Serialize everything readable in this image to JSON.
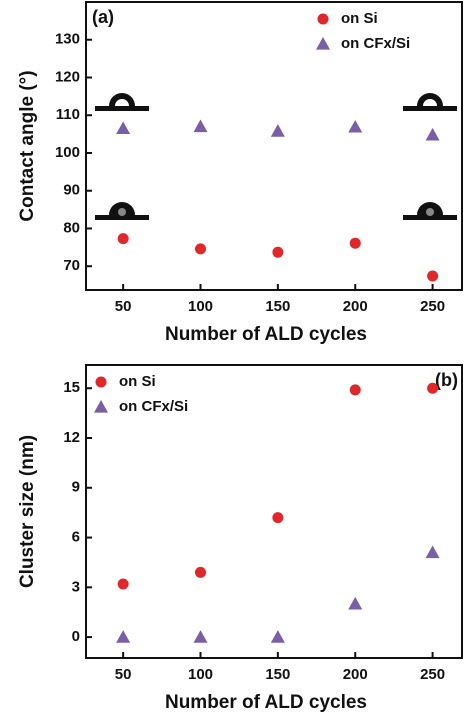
{
  "chart_data": [
    {
      "type": "scatter",
      "panel_label": "(a)",
      "x_label": "Number of ALD cycles",
      "y_label": "Contact angle (°)",
      "x": [
        50,
        100,
        150,
        200,
        250
      ],
      "series": [
        {
          "name": "on Si",
          "color": "#e52629",
          "marker": "circle",
          "values": [
            77.3,
            74.6,
            73.7,
            76.1,
            67.4
          ]
        },
        {
          "name": "on CFx/Si",
          "color": "#7a5fa8",
          "marker": "triangle",
          "values": [
            106.5,
            107,
            105.8,
            106.9,
            104.8
          ]
        }
      ],
      "xlim": [
        26,
        269
      ],
      "xticks": [
        50,
        100,
        150,
        200,
        250
      ],
      "ylim": [
        63.7,
        140
      ],
      "yticks": [
        70,
        80,
        90,
        100,
        110,
        120,
        130
      ],
      "legend": "upper right"
    },
    {
      "type": "scatter",
      "panel_label": "(b)",
      "x_label": "Number of ALD cycles",
      "y_label": "Cluster size (nm)",
      "x": [
        50,
        100,
        150,
        200,
        250
      ],
      "series": [
        {
          "name": "on Si",
          "color": "#e52629",
          "marker": "circle",
          "values": [
            3.2,
            3.9,
            7.2,
            14.9,
            15.0
          ]
        },
        {
          "name": "on CFx/Si",
          "color": "#7a5fa8",
          "marker": "triangle",
          "values": [
            0,
            0,
            0,
            2.0,
            5.1
          ]
        }
      ],
      "xlim": [
        26,
        269
      ],
      "xticks": [
        50,
        100,
        150,
        200,
        250
      ],
      "ylim": [
        -1.26,
        16.4
      ],
      "yticks": [
        0,
        3,
        6,
        9,
        12,
        15
      ],
      "legend": "upper left"
    }
  ]
}
